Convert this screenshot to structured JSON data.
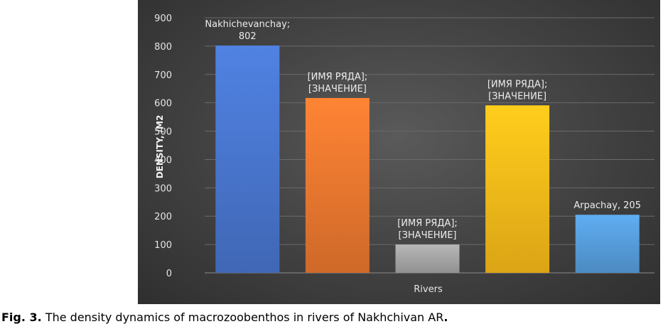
{
  "chart_data": {
    "type": "bar",
    "title": "",
    "xlabel": "Rivers",
    "ylabel": "DENSITY, /M2",
    "ylim": [
      0,
      900
    ],
    "yticks": [
      0,
      100,
      200,
      300,
      400,
      500,
      600,
      700,
      800,
      900
    ],
    "grid": true,
    "categories": [
      "Nakhichevanchay",
      "",
      "",
      "",
      "Arpachay"
    ],
    "values": [
      802,
      617,
      100,
      591,
      205
    ],
    "colors": [
      "#4a78d2",
      "#f07a30",
      "#a9a9a9",
      "#ffbf1a",
      "#58a0e0"
    ],
    "data_labels": [
      [
        "Nakhichevanchay;",
        "802"
      ],
      [
        "[ИМЯ РЯДА];",
        "[ЗНАЧЕНИЕ]"
      ],
      [
        "[ИМЯ РЯДА];",
        "[ЗНАЧЕНИЕ]"
      ],
      [
        "[ИМЯ РЯДА];",
        "[ЗНАЧЕНИЕ]"
      ],
      [
        "Arpachay, 205"
      ]
    ]
  },
  "caption": {
    "prefix": "Fig. 3.",
    "text": " The density dynamics of macrozoobenthos in rivers of Nakhchivan AR",
    "suffix": "."
  }
}
